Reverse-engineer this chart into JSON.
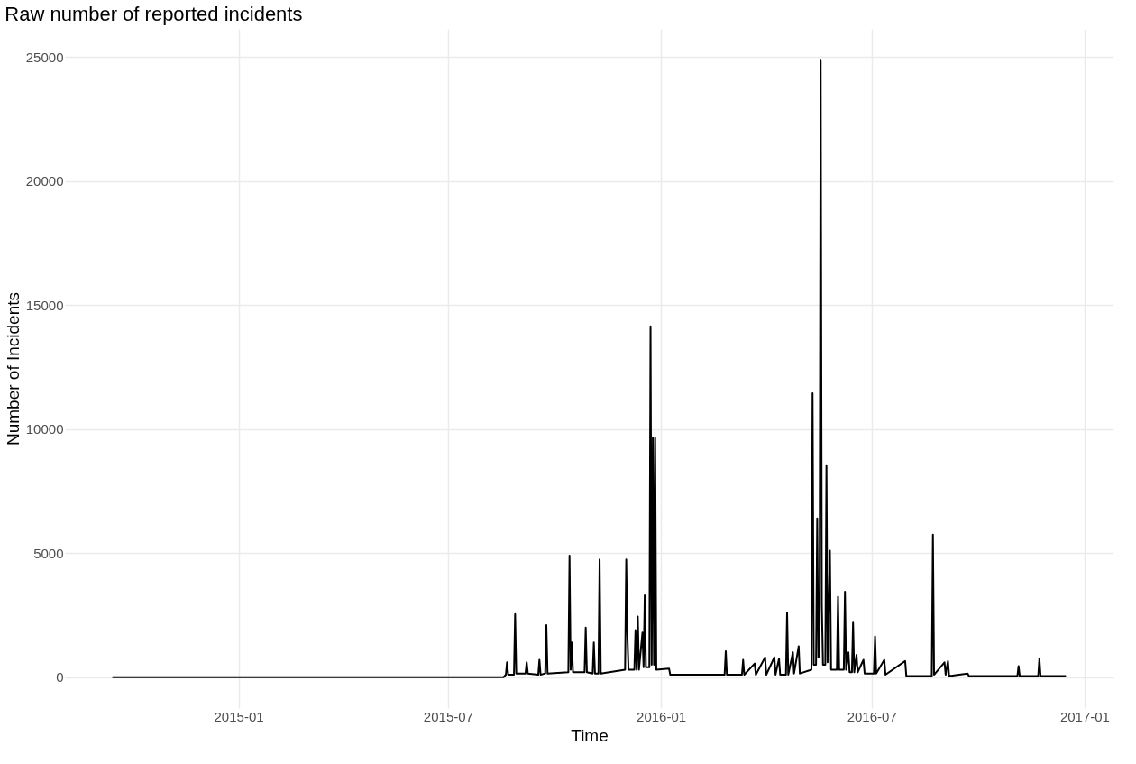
{
  "chart_data": {
    "type": "line",
    "title": "Raw number of reported incidents",
    "xlabel": "Time",
    "ylabel": "Number of Incidents",
    "x": [
      "2014-09-14",
      "2015-08-18",
      "2015-08-20",
      "2015-08-21",
      "2015-08-22",
      "2015-08-27",
      "2015-08-28",
      "2015-08-29",
      "2015-09-06",
      "2015-09-07",
      "2015-09-08",
      "2015-09-17",
      "2015-09-18",
      "2015-09-19",
      "2015-09-23",
      "2015-09-24",
      "2015-09-25",
      "2015-10-13",
      "2015-10-14",
      "2015-10-15",
      "2015-10-16",
      "2015-10-17",
      "2015-10-27",
      "2015-10-28",
      "2015-10-29",
      "2015-11-03",
      "2015-11-04",
      "2015-11-05",
      "2015-11-08",
      "2015-11-09",
      "2015-11-10",
      "2015-12-01",
      "2015-12-02",
      "2015-12-03",
      "2015-12-04",
      "2015-12-09",
      "2015-12-10",
      "2015-12-11",
      "2015-12-12",
      "2015-12-13",
      "2015-12-16",
      "2015-12-17",
      "2015-12-18",
      "2015-12-19",
      "2015-12-22",
      "2015-12-23",
      "2015-12-24",
      "2015-12-25",
      "2015-12-26",
      "2015-12-27",
      "2015-12-28",
      "2016-01-08",
      "2016-01-09",
      "2016-02-25",
      "2016-02-26",
      "2016-02-27",
      "2016-03-11",
      "2016-03-12",
      "2016-03-13",
      "2016-03-22",
      "2016-03-23",
      "2016-03-31",
      "2016-04-01",
      "2016-04-08",
      "2016-04-09",
      "2016-04-12",
      "2016-04-13",
      "2016-04-18",
      "2016-04-19",
      "2016-04-20",
      "2016-04-24",
      "2016-04-25",
      "2016-04-29",
      "2016-04-30",
      "2016-05-10",
      "2016-05-11",
      "2016-05-12",
      "2016-05-14",
      "2016-05-15",
      "2016-05-16",
      "2016-05-17",
      "2016-05-18",
      "2016-05-19",
      "2016-05-20",
      "2016-05-22",
      "2016-05-23",
      "2016-05-24",
      "2016-05-26",
      "2016-05-27",
      "2016-06-01",
      "2016-06-02",
      "2016-06-03",
      "2016-06-07",
      "2016-06-08",
      "2016-06-09",
      "2016-06-11",
      "2016-06-12",
      "2016-06-14",
      "2016-06-15",
      "2016-06-16",
      "2016-06-18",
      "2016-06-19",
      "2016-06-24",
      "2016-06-25",
      "2016-07-03",
      "2016-07-04",
      "2016-07-05",
      "2016-07-12",
      "2016-07-13",
      "2016-07-30",
      "2016-07-31",
      "2016-08-22",
      "2016-08-23",
      "2016-08-24",
      "2016-09-02",
      "2016-09-03",
      "2016-09-05",
      "2016-09-06",
      "2016-09-22",
      "2016-09-23",
      "2016-11-04",
      "2016-11-05",
      "2016-11-06",
      "2016-11-22",
      "2016-11-23",
      "2016-11-24",
      "2016-12-16"
    ],
    "series": [
      {
        "color": "#000000",
        "values": [
          0,
          0,
          100,
          600,
          100,
          100,
          2550,
          150,
          150,
          600,
          150,
          100,
          700,
          100,
          150,
          2100,
          150,
          200,
          4900,
          300,
          1400,
          200,
          200,
          2000,
          200,
          150,
          1400,
          150,
          150,
          4750,
          150,
          300,
          4750,
          1700,
          300,
          300,
          1900,
          300,
          2450,
          300,
          1800,
          400,
          3300,
          400,
          400,
          14150,
          500,
          9650,
          500,
          9650,
          300,
          350,
          100,
          100,
          1050,
          100,
          100,
          700,
          100,
          550,
          100,
          800,
          100,
          800,
          100,
          750,
          100,
          100,
          2600,
          100,
          1000,
          150,
          1250,
          150,
          300,
          11450,
          500,
          500,
          6400,
          800,
          800,
          24900,
          2900,
          500,
          500,
          8550,
          600,
          5100,
          300,
          300,
          3250,
          300,
          300,
          3450,
          300,
          1000,
          200,
          200,
          2200,
          200,
          900,
          200,
          700,
          150,
          150,
          1650,
          150,
          700,
          100,
          650,
          50,
          50,
          5750,
          100,
          600,
          100,
          650,
          50,
          150,
          50,
          50,
          450,
          50,
          50,
          750,
          50,
          50
        ]
      }
    ],
    "xlim": [
      "2014-08-04",
      "2017-01-26"
    ],
    "xticks": [
      {
        "value": "2015-01",
        "label": "2015-01"
      },
      {
        "value": "2015-07",
        "label": "2015-07"
      },
      {
        "value": "2016-01",
        "label": "2016-01"
      },
      {
        "value": "2016-07",
        "label": "2016-07"
      },
      {
        "value": "2017-01",
        "label": "2017-01"
      }
    ],
    "ylim": [
      -1245,
      26145
    ],
    "yticks": [
      0,
      5000,
      10000,
      15000,
      20000,
      25000
    ],
    "grid": true,
    "line_style": "solid"
  }
}
